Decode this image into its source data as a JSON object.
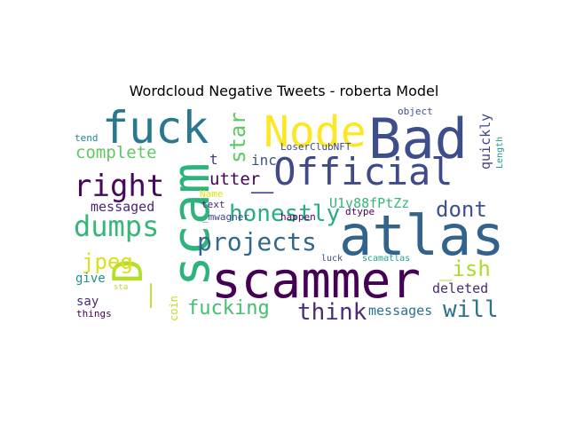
{
  "chart_data": {
    "type": "wordcloud",
    "title": "Wordcloud Negative Tweets - roberta Model",
    "words": [
      {
        "text": "Bad",
        "color": "#3d4e8a"
      },
      {
        "text": "atlas",
        "color": "#33638d"
      },
      {
        "text": "scammer",
        "color": "#440154"
      },
      {
        "text": "scam",
        "color": "#2eb37c"
      },
      {
        "text": "Node",
        "color": "#fde725"
      },
      {
        "text": "fuck",
        "color": "#2a788e"
      },
      {
        "text": "_Official",
        "color": "#3e4a89"
      },
      {
        "text": "_D",
        "color": "#b5de2b"
      },
      {
        "text": "right",
        "color": "#46085c"
      },
      {
        "text": "dumps",
        "color": "#35b779"
      },
      {
        "text": "projects",
        "color": "#31688e"
      },
      {
        "text": "honestly",
        "color": "#27ad81"
      },
      {
        "text": "think",
        "color": "#472d7b"
      },
      {
        "text": "will",
        "color": "#2c728e"
      },
      {
        "text": "star",
        "color": "#5ec962"
      },
      {
        "text": "jpeg",
        "color": "#d8e219"
      },
      {
        "text": "fucking",
        "color": "#44bf70"
      },
      {
        "text": "_ish",
        "color": "#addc30"
      },
      {
        "text": "dont",
        "color": "#3b528b"
      },
      {
        "text": "complete",
        "color": "#5ec962"
      },
      {
        "text": "utter",
        "color": "#440154"
      },
      {
        "text": "messaged",
        "color": "#482878"
      },
      {
        "text": "U1v88fPtZz",
        "color": "#35b779"
      },
      {
        "text": "deleted",
        "color": "#482878"
      },
      {
        "text": "messages",
        "color": "#2c728e"
      },
      {
        "text": "quickly",
        "color": "#414487"
      },
      {
        "text": "t",
        "color": "#443983"
      },
      {
        "text": "inc",
        "color": "#39568c"
      },
      {
        "text": "say",
        "color": "#472c7a"
      },
      {
        "text": "give",
        "color": "#21918c"
      },
      {
        "text": "coin",
        "color": "#bddf26"
      },
      {
        "text": "Length",
        "color": "#1f9e89"
      },
      {
        "text": "object",
        "color": "#3b528b"
      },
      {
        "text": "tend",
        "color": "#25858e"
      },
      {
        "text": "LoserClubNFT",
        "color": "#404688"
      },
      {
        "text": "Name",
        "color": "#dde318"
      },
      {
        "text": "text",
        "color": "#481f70"
      },
      {
        "text": "_mwagner",
        "color": "#3f4788"
      },
      {
        "text": "happen",
        "color": "#46085c"
      },
      {
        "text": "dtype",
        "color": "#440154"
      },
      {
        "text": "luck",
        "color": "#3e4a89"
      },
      {
        "text": "scamatlas",
        "color": "#1fa188"
      },
      {
        "text": "sta",
        "color": "#b5de2b"
      },
      {
        "text": "things",
        "color": "#440154"
      }
    ]
  }
}
